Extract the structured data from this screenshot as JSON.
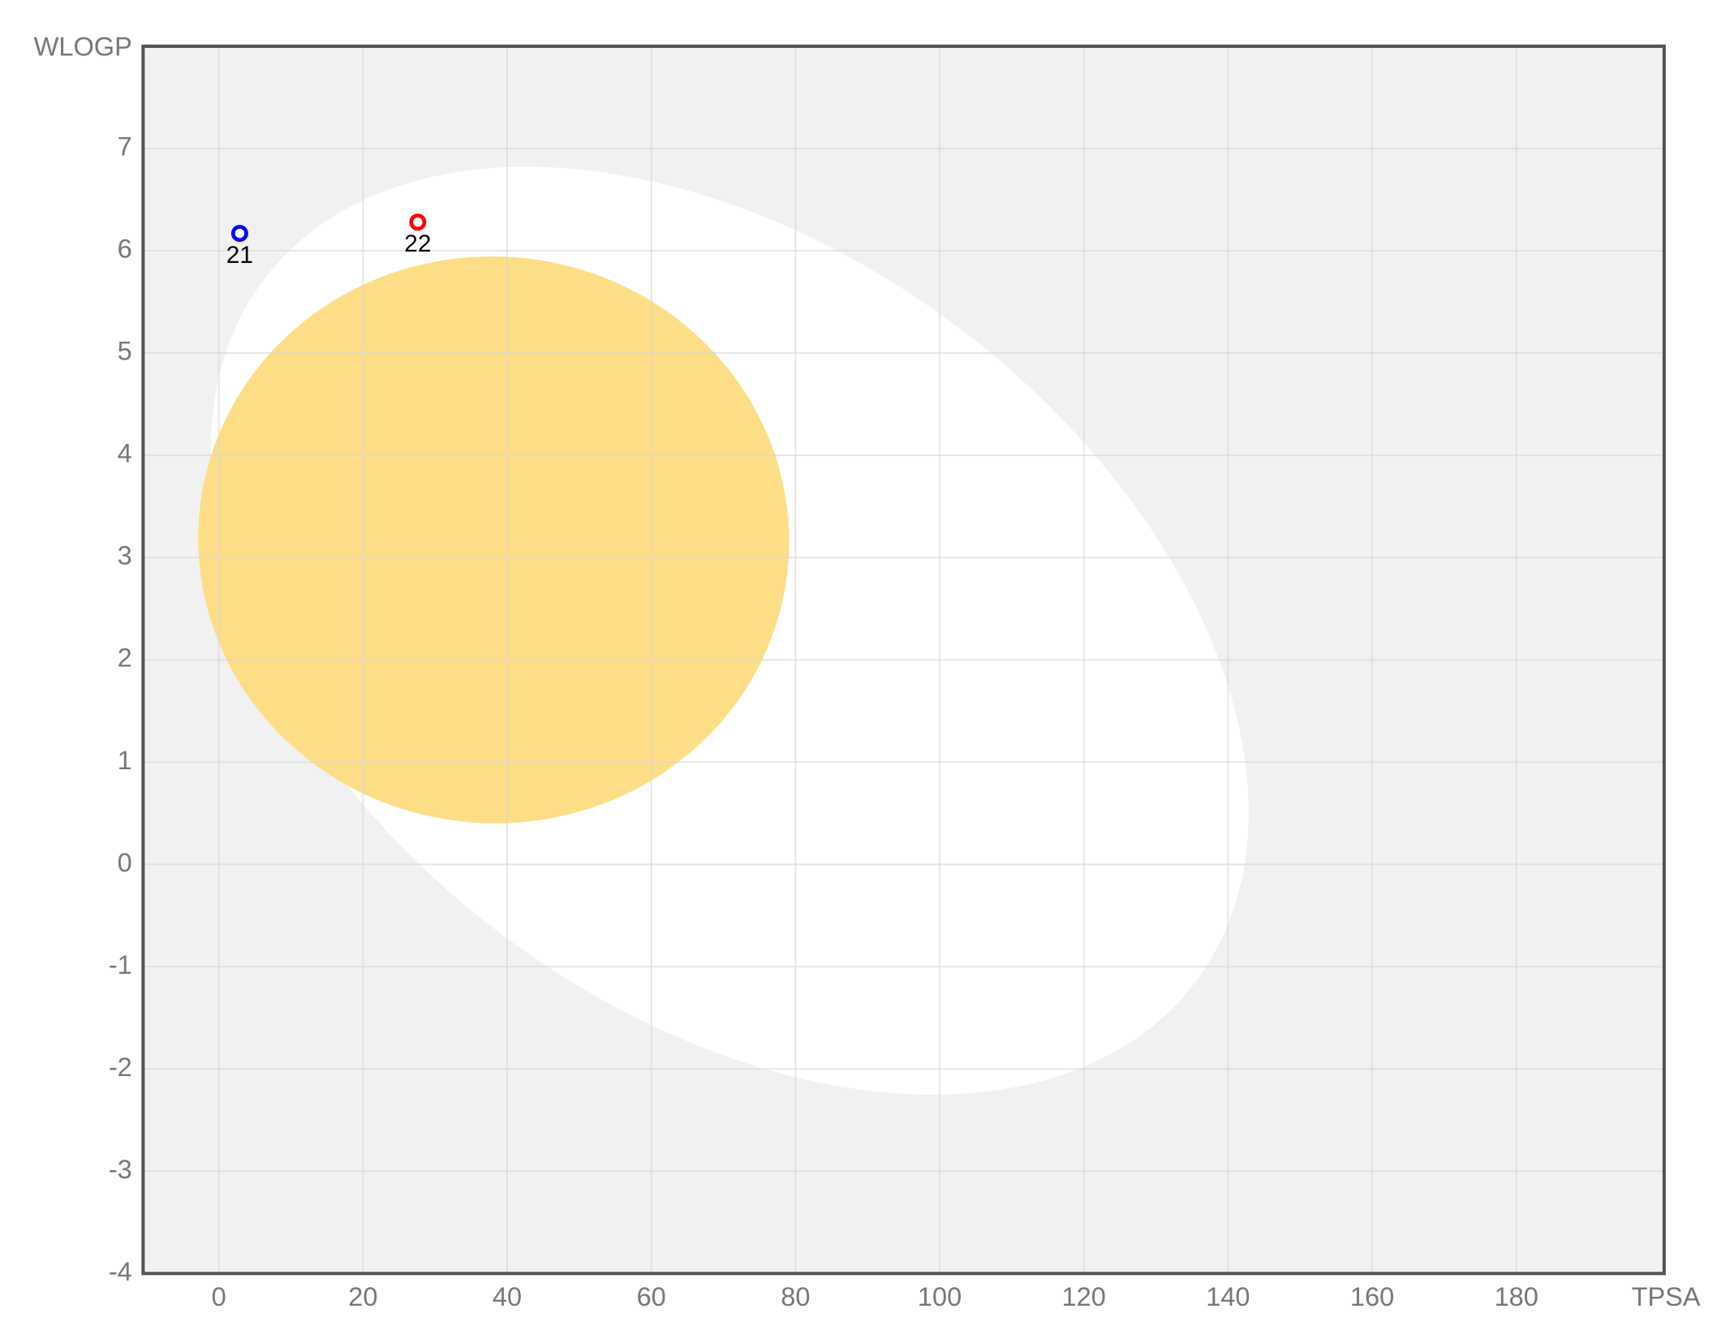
{
  "chart_data": {
    "type": "scatter",
    "x_label": "TPSA",
    "y_label": "WLOGP",
    "x": [
      2.9,
      27.6
    ],
    "values": [
      6.17,
      6.28
    ],
    "point_labels": [
      "21",
      "22"
    ],
    "colors": [
      "#0000ff",
      "#ff0000"
    ],
    "xlim": [
      -10.5,
      200.5
    ],
    "ylim": [
      -4,
      8
    ],
    "xticks": [
      0,
      20,
      40,
      60,
      80,
      100,
      120,
      140,
      160,
      180
    ],
    "yticks": [
      -4,
      -3,
      -2,
      -1,
      0,
      1,
      2,
      3,
      4,
      5,
      6,
      7
    ],
    "grid": true
  }
}
